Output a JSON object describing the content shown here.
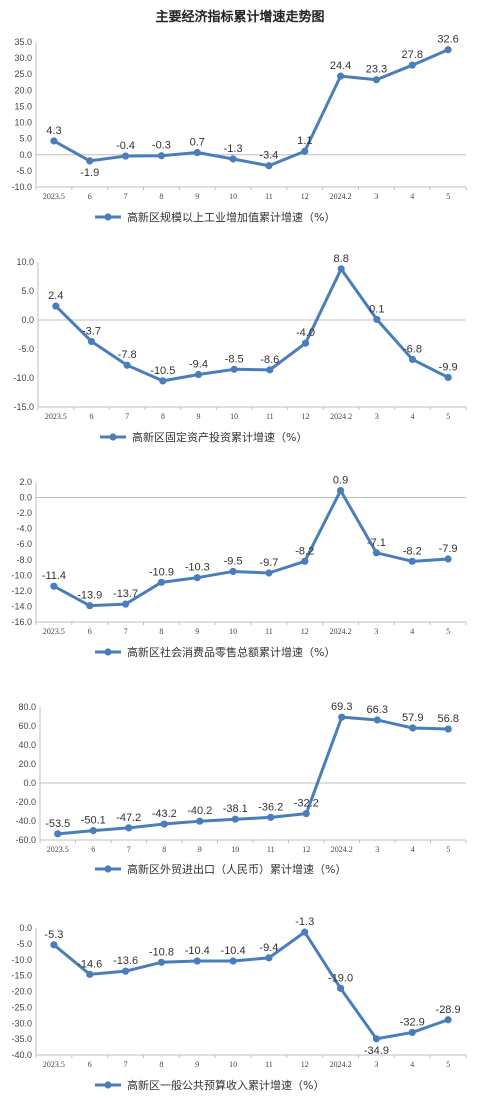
{
  "page": {
    "title": "主要经济指标累计增速走势图"
  },
  "colors": {
    "series": "#4a7ebb",
    "axis": "#bfbfbf"
  },
  "chart_data": [
    {
      "type": "line",
      "title": "",
      "categories": [
        "2023.5",
        "6",
        "7",
        "8",
        "9",
        "10",
        "11",
        "12",
        "2024.2",
        "3",
        "4",
        "5"
      ],
      "series": [
        {
          "name": "高新区规模以上工业增加值累计增速（%）",
          "values": [
            4.3,
            -1.9,
            -0.4,
            -0.3,
            0.7,
            -1.3,
            -3.4,
            1.1,
            24.4,
            23.3,
            27.8,
            32.6
          ]
        }
      ],
      "ylim": [
        -10,
        35
      ],
      "ytick_step": 5,
      "yticks": [
        "35.0",
        "30.0",
        "25.0",
        "20.0",
        "15.0",
        "10.0",
        "5.0",
        "0.0",
        "-5.0",
        "-10.0"
      ],
      "data_labels": [
        "4.3",
        "-1.9",
        "-0.4",
        "-0.3",
        "0.7",
        "-1.3",
        "-3.4",
        "1.1",
        "24.4",
        "23.3",
        "27.8",
        "32.6"
      ],
      "legend": "bottom",
      "grid": false
    },
    {
      "type": "line",
      "title": "",
      "categories": [
        "2023.5",
        "6",
        "7",
        "8",
        "9",
        "10",
        "11",
        "12",
        "2024.2",
        "3",
        "4",
        "5"
      ],
      "series": [
        {
          "name": "高新区固定资产投资累计增速（%）",
          "values": [
            2.4,
            -3.7,
            -7.8,
            -10.5,
            -9.4,
            -8.5,
            -8.6,
            -4.0,
            8.8,
            0.1,
            -6.8,
            -9.9
          ]
        }
      ],
      "ylim": [
        -15,
        10
      ],
      "ytick_step": 5,
      "yticks": [
        "10.0",
        "5.0",
        "0.0",
        "-5.0",
        "-10.0",
        "-15.0"
      ],
      "data_labels": [
        "2.4",
        "-3.7",
        "-7.8",
        "-10.5",
        "-9.4",
        "-8.5",
        "-8.6",
        "-4.0",
        "8.8",
        "0.1",
        "-6.8",
        "-9.9"
      ],
      "legend": "bottom",
      "grid": false
    },
    {
      "type": "line",
      "title": "",
      "categories": [
        "2023.5",
        "6",
        "7",
        "8",
        "9",
        "10",
        "11",
        "12",
        "2024.2",
        "3",
        "4",
        "5"
      ],
      "series": [
        {
          "name": "高新区社会消费品零售总额累计增速（%）",
          "values": [
            -11.4,
            -13.9,
            -13.7,
            -10.9,
            -10.3,
            -9.5,
            -9.7,
            -8.2,
            0.9,
            -7.1,
            -8.2,
            -7.9
          ]
        }
      ],
      "ylim": [
        -16,
        2
      ],
      "ytick_step": 2,
      "yticks": [
        "2.0",
        "0.0",
        "-2.0",
        "-4.0",
        "-6.0",
        "-8.0",
        "-10.0",
        "-12.0",
        "-14.0",
        "-16.0"
      ],
      "data_labels": [
        "-11.4",
        "-13.9",
        "-13.7",
        "-10.9",
        "-10.3",
        "-9.5",
        "-9.7",
        "-8.2",
        "0.9",
        "-7.1",
        "-8.2",
        "-7.9"
      ],
      "legend": "bottom",
      "grid": false
    },
    {
      "type": "line",
      "title": "",
      "categories": [
        "2023.5",
        "6",
        "7",
        "8",
        "9",
        "10",
        "11",
        "12",
        "2024.2",
        "3",
        "4",
        "5"
      ],
      "series": [
        {
          "name": "高新区外贸进出口（人民币）累计增速（%）",
          "values": [
            -53.5,
            -50.1,
            -47.2,
            -43.2,
            -40.2,
            -38.1,
            -36.2,
            -32.2,
            69.3,
            66.3,
            57.9,
            56.8
          ]
        }
      ],
      "ylim": [
        -60,
        80
      ],
      "ytick_step": 20,
      "yticks": [
        "80.0",
        "60.0",
        "40.0",
        "20.0",
        "0.0",
        "-20.0",
        "-40.0",
        "-60.0"
      ],
      "data_labels": [
        "-53.5",
        "-50.1",
        "-47.2",
        "-43.2",
        "-40.2",
        "-38.1",
        "-36.2",
        "-32.2",
        "69.3",
        "66.3",
        "57.9",
        "56.8"
      ],
      "legend": "bottom",
      "grid": false
    },
    {
      "type": "line",
      "title": "",
      "categories": [
        "2023.5",
        "6",
        "7",
        "8",
        "9",
        "10",
        "11",
        "12",
        "2024.2",
        "3",
        "4",
        "5"
      ],
      "series": [
        {
          "name": "高新区一般公共预算收入累计增速（%）",
          "values": [
            -5.3,
            -14.6,
            -13.6,
            -10.8,
            -10.4,
            -10.4,
            -9.4,
            -1.3,
            -19.0,
            -34.9,
            -32.9,
            -28.9
          ]
        }
      ],
      "ylim": [
        -40,
        0
      ],
      "ytick_step": 5,
      "yticks": [
        "0.0",
        "-5.0",
        "-10.0",
        "-15.0",
        "-20.0",
        "-25.0",
        "-30.0",
        "-35.0",
        "-40.0"
      ],
      "data_labels": [
        "-5.3",
        "-14.6",
        "-13.6",
        "-10.8",
        "-10.4",
        "-10.4",
        "-9.4",
        "-1.3",
        "-19.0",
        "-34.9",
        "-32.9",
        "-28.9"
      ],
      "legend": "bottom",
      "grid": false
    }
  ]
}
